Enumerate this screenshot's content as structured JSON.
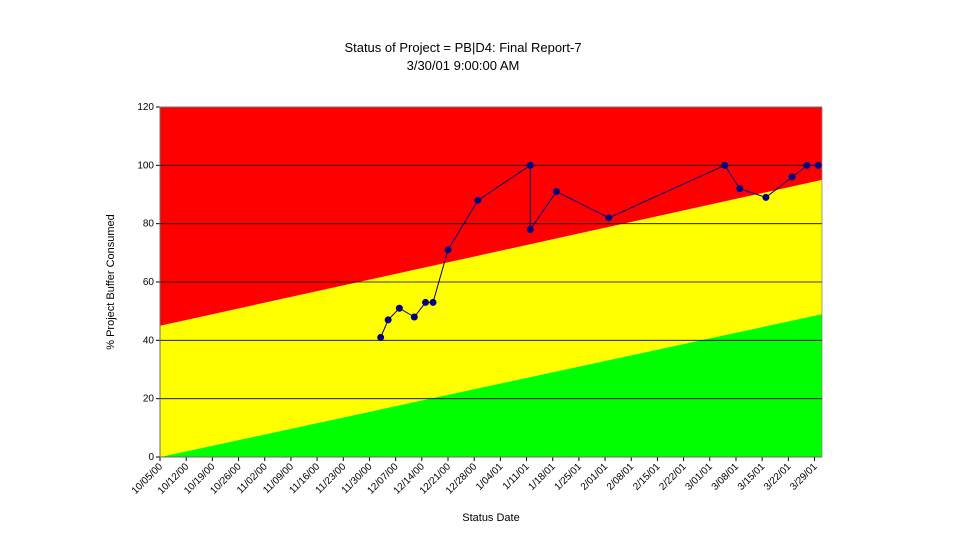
{
  "chart_data": {
    "type": "line",
    "title": "Status of Project = PB|D4: Final Report-7",
    "subtitle": "3/30/01 9:00:00 AM",
    "x_label": "Status Date",
    "y_label": "% Project Buffer Consumed",
    "x": [
      "12/03/00",
      "12/05/00",
      "12/08/00",
      "12/12/00",
      "12/15/00",
      "12/17/00",
      "12/21/00",
      "12/29/00",
      "1/12/01",
      "1/12/01",
      "1/19/01",
      "2/02/01",
      "3/05/01",
      "3/09/01",
      "3/16/01",
      "3/23/01",
      "3/27/01",
      "3/30/01"
    ],
    "values": [
      41,
      47,
      51,
      48,
      53,
      53,
      71,
      88,
      100,
      78,
      91,
      82,
      100,
      92,
      89,
      96,
      100,
      100
    ],
    "color": "#000080",
    "xlim": [
      "10/05/00",
      "3/31/01"
    ],
    "xticks": [
      "10/05/00",
      "10/12/00",
      "10/19/00",
      "10/26/00",
      "11/02/00",
      "11/09/00",
      "11/16/00",
      "11/23/00",
      "11/30/00",
      "12/07/00",
      "12/14/00",
      "12/21/00",
      "12/28/00",
      "1/04/01",
      "1/11/01",
      "1/18/01",
      "1/25/01",
      "2/01/01",
      "2/08/01",
      "2/15/01",
      "2/22/01",
      "3/01/01",
      "3/08/01",
      "3/15/01",
      "3/22/01",
      "3/29/01"
    ],
    "ylim": [
      0,
      120
    ],
    "yticks": [
      0,
      20,
      40,
      60,
      80,
      100,
      120
    ],
    "grid": true,
    "zones": [
      {
        "color": "#00ff00",
        "upper": [
          0,
          49
        ]
      },
      {
        "color": "#ffff00",
        "upper": [
          45,
          95
        ]
      },
      {
        "color": "#ff0000"
      }
    ]
  }
}
